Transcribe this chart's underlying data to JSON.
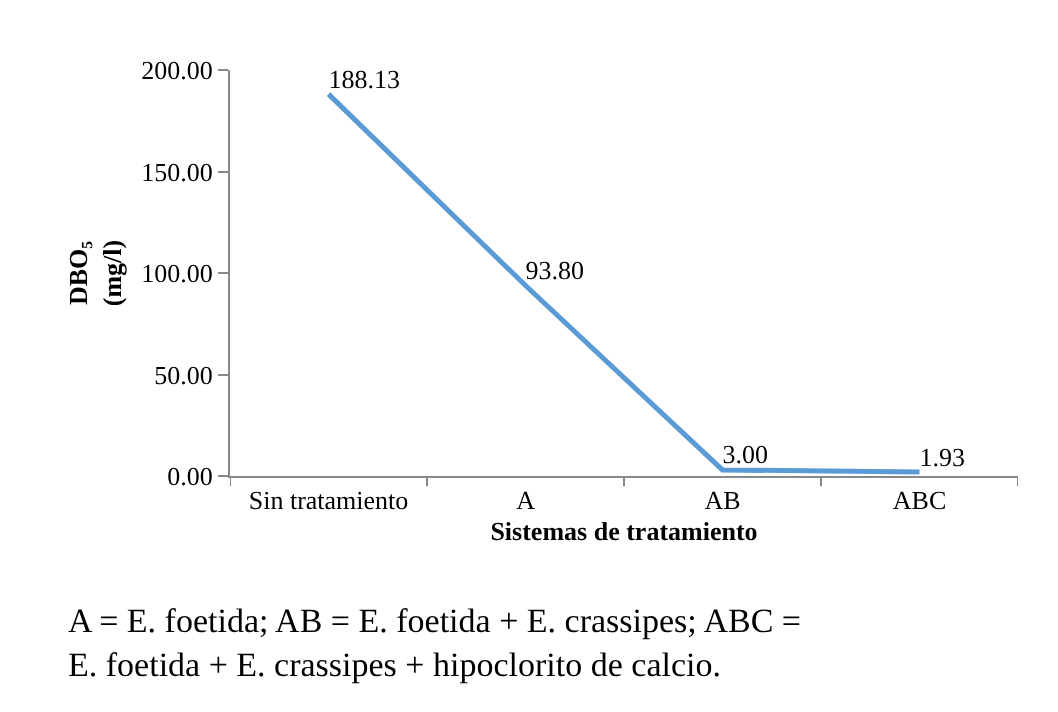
{
  "chart_data": {
    "type": "line",
    "xlabel": "Sistemas de tratamiento",
    "ylabel": "DBO₅\n(mg/l)",
    "categories": [
      "Sin tratamiento",
      "A",
      "AB",
      "ABC"
    ],
    "series": [
      {
        "color": "#5b9bd5",
        "values": [
          188.13,
          93.8,
          3.0,
          1.93
        ],
        "value_labels": [
          "188.13",
          "93.80",
          "3.00",
          "1.93"
        ]
      }
    ],
    "ylim": [
      0,
      200
    ],
    "yticks": [
      {
        "value": 0,
        "label": "0.00"
      },
      {
        "value": 50,
        "label": "50.00"
      },
      {
        "value": 100,
        "label": "100.00"
      },
      {
        "value": 150,
        "label": "150.00"
      },
      {
        "value": 200,
        "label": "200.00"
      }
    ],
    "legend": false,
    "marker": "none",
    "line_style": "solid",
    "annotations": [
      "A = E. foetida; AB = E. foetida + E. crassipes; ABC =\nE. foetida + E. crassipes + hipoclorito de calcio."
    ]
  }
}
